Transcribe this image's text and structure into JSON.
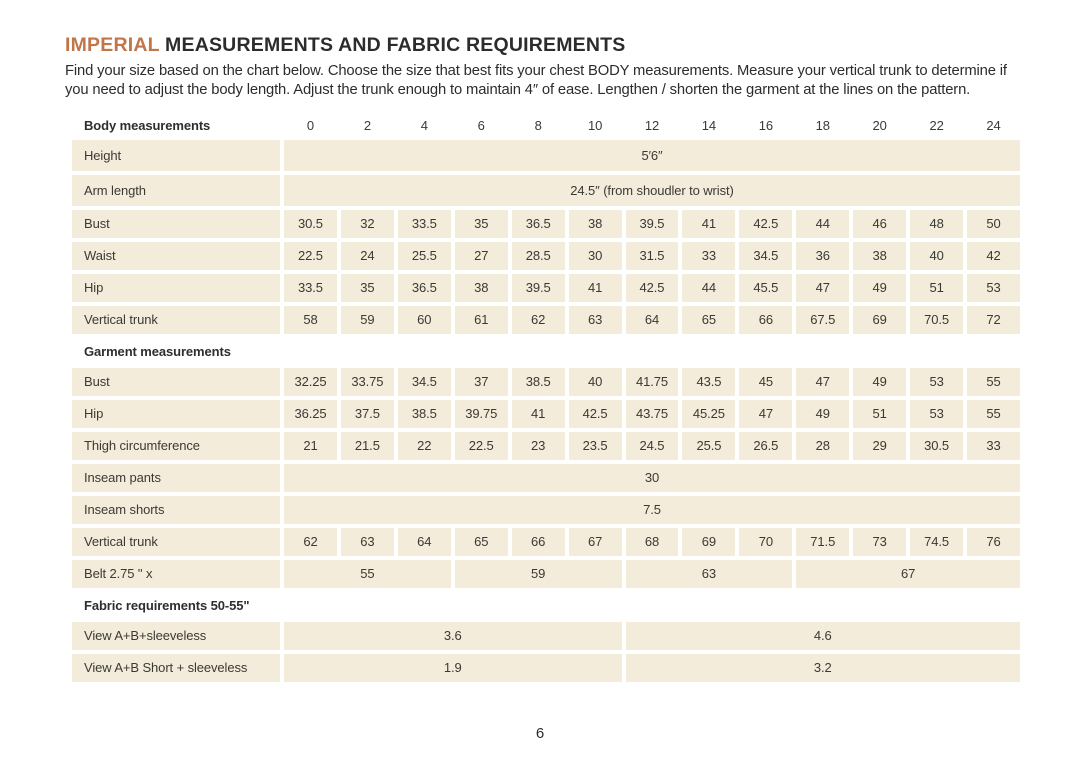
{
  "header": {
    "title_accent": "IMPERIAL",
    "title_rest": "MEASUREMENTS AND FABRIC REQUIREMENTS",
    "intro": "Find your size based on the chart below. Choose the size that best fits your chest BODY measurements. Measure your vertical trunk to determine if you need to adjust the body length. Adjust the trunk enough to maintain 4″ of ease. Lengthen / shorten the garment at the lines on the pattern."
  },
  "colors": {
    "accent": "#c0764a",
    "row_bg": "#f3ecdb",
    "text_dark": "#2d2c2a",
    "text_table": "#3c3935"
  },
  "table": {
    "sizes": [
      "0",
      "2",
      "4",
      "6",
      "8",
      "10",
      "12",
      "14",
      "16",
      "18",
      "20",
      "22",
      "24"
    ],
    "rows": [
      {
        "type": "header",
        "label": "Body measurements"
      },
      {
        "type": "span",
        "label": "Height",
        "cells": [
          {
            "text": "5′6″",
            "span": 13
          }
        ]
      },
      {
        "type": "span",
        "label": "Arm length",
        "cells": [
          {
            "text": "24.5″ (from shoudler to wrist)",
            "span": 13
          }
        ]
      },
      {
        "type": "values",
        "label": "Bust",
        "cells": [
          "30.5",
          "32",
          "33.5",
          "35",
          "36.5",
          "38",
          "39.5",
          "41",
          "42.5",
          "44",
          "46",
          "48",
          "50"
        ]
      },
      {
        "type": "values",
        "label": "Waist",
        "cells": [
          "22.5",
          "24",
          "25.5",
          "27",
          "28.5",
          "30",
          "31.5",
          "33",
          "34.5",
          "36",
          "38",
          "40",
          "42"
        ]
      },
      {
        "type": "values",
        "label": "Hip",
        "cells": [
          "33.5",
          "35",
          "36.5",
          "38",
          "39.5",
          "41",
          "42.5",
          "44",
          "45.5",
          "47",
          "49",
          "51",
          "53"
        ]
      },
      {
        "type": "values",
        "label": "Vertical trunk",
        "cells": [
          "58",
          "59",
          "60",
          "61",
          "62",
          "63",
          "64",
          "65",
          "66",
          "67.5",
          "69",
          "70.5",
          "72"
        ]
      },
      {
        "type": "section",
        "label": "Garment measurements"
      },
      {
        "type": "values",
        "label": "Bust",
        "cells": [
          "32.25",
          "33.75",
          "34.5",
          "37",
          "38.5",
          "40",
          "41.75",
          "43.5",
          "45",
          "47",
          "49",
          "53",
          "55"
        ]
      },
      {
        "type": "values",
        "label": "Hip",
        "cells": [
          "36.25",
          "37.5",
          "38.5",
          "39.75",
          "41",
          "42.5",
          "43.75",
          "45.25",
          "47",
          "49",
          "51",
          "53",
          "55"
        ]
      },
      {
        "type": "values",
        "label": "Thigh circumference",
        "cells": [
          "21",
          "21.5",
          "22",
          "22.5",
          "23",
          "23.5",
          "24.5",
          "25.5",
          "26.5",
          "28",
          "29",
          "30.5",
          "33"
        ]
      },
      {
        "type": "span",
        "label": "Inseam pants",
        "cells": [
          {
            "text": "30",
            "span": 13
          }
        ]
      },
      {
        "type": "span",
        "label": "Inseam shorts",
        "cells": [
          {
            "text": "7.5",
            "span": 13
          }
        ]
      },
      {
        "type": "values",
        "label": "Vertical trunk",
        "cells": [
          "62",
          "63",
          "64",
          "65",
          "66",
          "67",
          "68",
          "69",
          "70",
          "71.5",
          "73",
          "74.5",
          "76"
        ]
      },
      {
        "type": "span",
        "label": "Belt 2.75 \" x",
        "cells": [
          {
            "text": "55",
            "span": 3
          },
          {
            "text": "59",
            "span": 3
          },
          {
            "text": "63",
            "span": 3
          },
          {
            "text": "67",
            "span": 4
          }
        ]
      },
      {
        "type": "section",
        "label": "Fabric requirements 50-55\""
      },
      {
        "type": "span",
        "label": "View A+B+sleeveless",
        "cells": [
          {
            "text": "3.6",
            "span": 6
          },
          {
            "text": "4.6",
            "span": 7
          }
        ]
      },
      {
        "type": "span",
        "label": "View A+B Short + sleeveless",
        "cells": [
          {
            "text": "1.9",
            "span": 6
          },
          {
            "text": "3.2",
            "span": 7
          }
        ]
      }
    ]
  },
  "footer": {
    "page_number": "6"
  }
}
